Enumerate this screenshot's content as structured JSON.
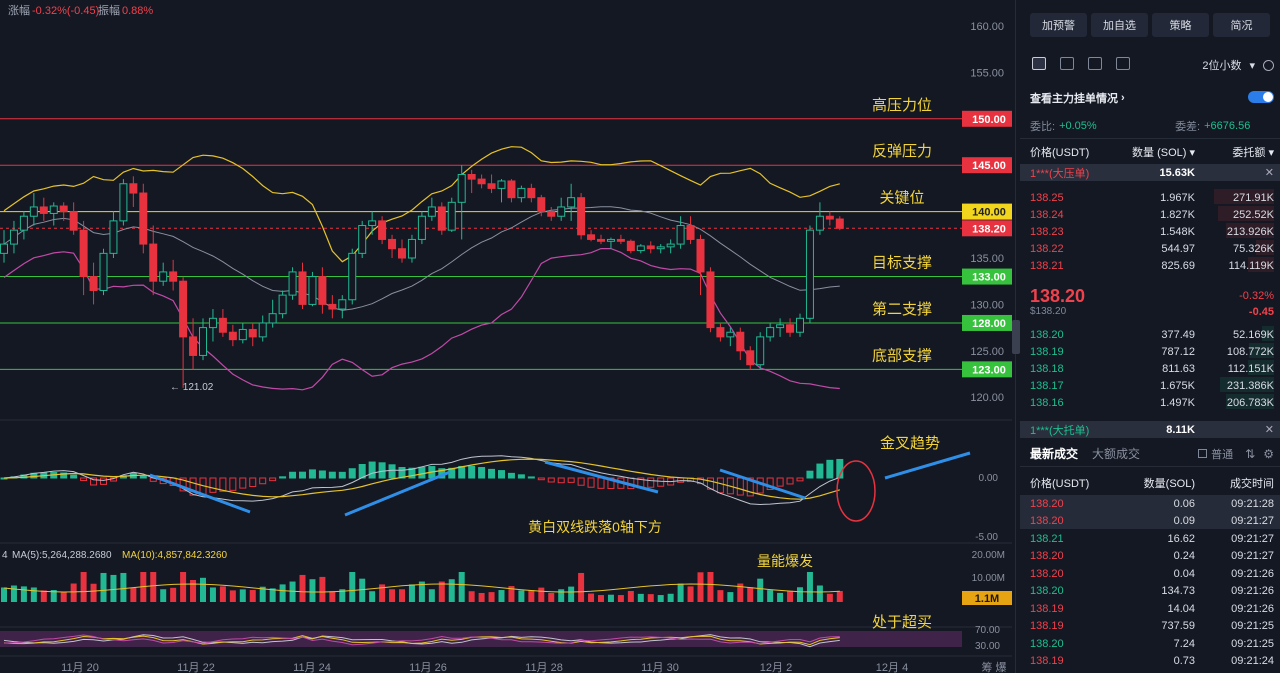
{
  "header": {
    "change_label": "涨幅",
    "change_value": "-0.32%(-0.45)",
    "amplitude_label": "振幅",
    "amplitude_value": "0.88%"
  },
  "price_axis": [
    "160.00",
    "155.00",
    "150.00",
    "145.00",
    "140.00",
    "135.00",
    "130.00",
    "125.00",
    "120.00"
  ],
  "macd_axis": [
    "0.00",
    "-5.00"
  ],
  "volume_axis": [
    "20.00M",
    "10.00M"
  ],
  "rsi_axis": [
    "70.00",
    "30.00"
  ],
  "levels": [
    {
      "label": "高压力位",
      "value": "150.00",
      "color": "#e8323f"
    },
    {
      "label": "反弹压力",
      "value": "145.00",
      "color": "#e8323f"
    },
    {
      "label": "关键位",
      "value": "140.00",
      "color": "#f2d61e"
    },
    {
      "label": "目标支撑",
      "value": "133.00",
      "color": "#37c23d"
    },
    {
      "label": "第二支撑",
      "value": "128.00",
      "color": "#37c23d"
    },
    {
      "label": "底部支撑",
      "value": "123.00",
      "color": "#37c23d"
    }
  ],
  "current_price_tag": "138.20",
  "low_marker": "← 121.02",
  "annotations": {
    "golden_cross": "金叉趋势",
    "macd_note": "黄白双线跌落0轴下方",
    "volume_burst": "量能爆发",
    "oversold": "处于超买"
  },
  "volume_tag": "1.1M",
  "volume_legend": {
    "ma5": "MA(5):5,264,288.2680",
    "ma10": "MA(10):4,857,842.3260"
  },
  "x_axis": [
    "11月 20",
    "11月 22",
    "11月 24",
    "11月 26",
    "11月 28",
    "11月 30",
    "12月 2",
    "12月 4"
  ],
  "corner_label": "筹 爆",
  "chart_data": {
    "type": "candlestick",
    "y_range": [
      118,
      162
    ],
    "candles": [
      [
        135.5,
        138.0,
        134.5,
        136.5
      ],
      [
        136.5,
        139.0,
        135.5,
        138.0
      ],
      [
        138.0,
        140.0,
        137.0,
        139.5
      ],
      [
        139.5,
        142.0,
        138.5,
        140.5
      ],
      [
        140.5,
        141.5,
        139.0,
        139.8
      ],
      [
        139.8,
        141.0,
        138.5,
        140.6
      ],
      [
        140.6,
        141.0,
        139.0,
        140.0
      ],
      [
        140.0,
        141.0,
        137.5,
        138.0
      ],
      [
        138.0,
        139.0,
        131.0,
        133.0
      ],
      [
        133.0,
        134.5,
        130.0,
        131.5
      ],
      [
        131.5,
        136.0,
        131.0,
        135.5
      ],
      [
        135.5,
        140.0,
        135.0,
        139.0
      ],
      [
        139.0,
        143.5,
        138.5,
        143.0
      ],
      [
        143.0,
        143.8,
        140.5,
        142.0
      ],
      [
        142.0,
        143.0,
        135.5,
        136.5
      ],
      [
        136.5,
        138.5,
        131.0,
        132.5
      ],
      [
        132.5,
        134.5,
        132.0,
        133.5
      ],
      [
        133.5,
        134.8,
        131.5,
        132.5
      ],
      [
        132.5,
        133.0,
        121.0,
        126.5
      ],
      [
        126.5,
        128.5,
        123.0,
        124.5
      ],
      [
        124.5,
        128.5,
        124.0,
        127.5
      ],
      [
        127.5,
        129.5,
        126.0,
        128.5
      ],
      [
        128.5,
        129.5,
        126.5,
        127.0
      ],
      [
        127.0,
        127.8,
        125.5,
        126.2
      ],
      [
        126.2,
        128.0,
        125.8,
        127.3
      ],
      [
        127.3,
        128.0,
        125.5,
        126.5
      ],
      [
        126.5,
        128.8,
        126.0,
        128.0
      ],
      [
        128.0,
        130.5,
        127.5,
        129.0
      ],
      [
        129.0,
        131.5,
        128.5,
        131.0
      ],
      [
        131.0,
        134.0,
        130.5,
        133.5
      ],
      [
        133.5,
        134.5,
        129.5,
        130.0
      ],
      [
        130.0,
        133.5,
        129.8,
        133.0
      ],
      [
        133.0,
        134.0,
        129.0,
        130.0
      ],
      [
        130.0,
        131.0,
        128.5,
        129.5
      ],
      [
        129.5,
        131.0,
        128.5,
        130.5
      ],
      [
        130.5,
        136.0,
        130.0,
        135.5
      ],
      [
        135.5,
        139.0,
        135.0,
        138.5
      ],
      [
        138.5,
        140.0,
        137.5,
        139.0
      ],
      [
        139.0,
        139.5,
        136.5,
        137.0
      ],
      [
        137.0,
        137.5,
        135.0,
        136.0
      ],
      [
        136.0,
        137.0,
        134.5,
        135.0
      ],
      [
        135.0,
        137.5,
        134.5,
        137.0
      ],
      [
        137.0,
        140.0,
        136.5,
        139.5
      ],
      [
        139.5,
        141.5,
        139.0,
        140.5
      ],
      [
        140.5,
        141.0,
        137.5,
        138.0
      ],
      [
        138.0,
        141.5,
        137.8,
        141.0
      ],
      [
        141.0,
        145.0,
        137.0,
        144.0
      ],
      [
        144.0,
        144.5,
        142.0,
        143.5
      ],
      [
        143.5,
        144.0,
        142.5,
        143.0
      ],
      [
        143.0,
        144.0,
        142.0,
        142.5
      ],
      [
        142.5,
        143.5,
        141.0,
        143.3
      ],
      [
        143.3,
        143.5,
        141.0,
        141.5
      ],
      [
        141.5,
        142.8,
        141.0,
        142.5
      ],
      [
        142.5,
        143.0,
        141.0,
        141.5
      ],
      [
        141.5,
        141.8,
        139.5,
        140.0
      ],
      [
        140.0,
        140.5,
        139.0,
        139.5
      ],
      [
        139.5,
        141.5,
        139.0,
        140.5
      ],
      [
        140.5,
        143.0,
        139.0,
        141.5
      ],
      [
        141.5,
        142.0,
        137.0,
        137.5
      ],
      [
        137.5,
        138.0,
        136.8,
        137.0
      ],
      [
        137.0,
        137.5,
        136.5,
        136.8
      ],
      [
        136.8,
        137.2,
        136.0,
        137.0
      ],
      [
        137.0,
        137.5,
        136.5,
        136.8
      ],
      [
        136.8,
        137.0,
        135.5,
        135.8
      ],
      [
        135.8,
        136.5,
        135.5,
        136.3
      ],
      [
        136.3,
        136.8,
        135.5,
        136.0
      ],
      [
        136.0,
        136.5,
        135.5,
        136.2
      ],
      [
        136.2,
        137.0,
        135.5,
        136.5
      ],
      [
        136.5,
        139.5,
        136.0,
        138.5
      ],
      [
        138.5,
        139.5,
        136.5,
        137.0
      ],
      [
        137.0,
        137.5,
        131.0,
        133.5
      ],
      [
        133.5,
        134.0,
        127.0,
        127.5
      ],
      [
        127.5,
        128.0,
        126.0,
        126.5
      ],
      [
        126.5,
        127.5,
        125.5,
        127.0
      ],
      [
        127.0,
        127.5,
        124.0,
        125.0
      ],
      [
        125.0,
        125.5,
        123.0,
        123.5
      ],
      [
        123.5,
        127.0,
        123.0,
        126.5
      ],
      [
        126.5,
        128.0,
        126.0,
        127.5
      ],
      [
        127.5,
        128.5,
        126.5,
        127.8
      ],
      [
        127.8,
        128.5,
        126.5,
        127.0
      ],
      [
        127.0,
        129.0,
        126.5,
        128.5
      ],
      [
        128.5,
        138.5,
        128.0,
        138.0
      ],
      [
        138.0,
        141.0,
        137.5,
        139.5
      ],
      [
        139.5,
        140.0,
        138.5,
        139.2
      ],
      [
        139.2,
        139.5,
        138.0,
        138.2
      ]
    ]
  },
  "panel": {
    "buttons": [
      "加预警",
      "加自选",
      "策略",
      "简况"
    ],
    "decimals": "2位小数",
    "watch_label": "查看主力挂单情况",
    "ratio_label": "委比:",
    "ratio_value": "+0.05%",
    "diff_label": "委差:",
    "diff_value": "+6676.56",
    "headers": [
      "价格(USDT)",
      "数量 (SOL)",
      "委托额"
    ],
    "big_sell": {
      "label": "1***(大压单)",
      "qty": "15.63K"
    },
    "asks": [
      [
        "138.25",
        "1.967K",
        "271.91K"
      ],
      [
        "138.24",
        "1.827K",
        "252.52K"
      ],
      [
        "138.23",
        "1.548K",
        "213.926K"
      ],
      [
        "138.22",
        "544.97",
        "75.326K"
      ],
      [
        "138.21",
        "825.69",
        "114.119K"
      ]
    ],
    "mid_price": "138.20",
    "mid_sub": "$138.20",
    "mid_pct": "-0.32%",
    "mid_chg": "-0.45",
    "bids": [
      [
        "138.20",
        "377.49",
        "52.169K"
      ],
      [
        "138.19",
        "787.12",
        "108.772K"
      ],
      [
        "138.18",
        "811.63",
        "112.151K"
      ],
      [
        "138.17",
        "1.675K",
        "231.386K"
      ],
      [
        "138.16",
        "1.497K",
        "206.783K"
      ]
    ],
    "big_buy": {
      "label": "1***(大托单)",
      "qty": "8.11K"
    },
    "trade_tabs": [
      "最新成交",
      "大额成交"
    ],
    "normal_label": "普通",
    "trade_headers": [
      "价格(USDT)",
      "数量(SOL)",
      "成交时间"
    ],
    "trades": [
      [
        "138.20",
        "0.06",
        "09:21:28",
        "r"
      ],
      [
        "138.20",
        "0.09",
        "09:21:27",
        "r"
      ],
      [
        "138.21",
        "16.62",
        "09:21:27",
        "g"
      ],
      [
        "138.20",
        "0.24",
        "09:21:27",
        "r"
      ],
      [
        "138.20",
        "0.04",
        "09:21:26",
        "r"
      ],
      [
        "138.20",
        "134.73",
        "09:21:26",
        "g"
      ],
      [
        "138.19",
        "14.04",
        "09:21:26",
        "r"
      ],
      [
        "138.19",
        "737.59",
        "09:21:25",
        "r"
      ],
      [
        "138.20",
        "7.24",
        "09:21:25",
        "g"
      ],
      [
        "138.19",
        "0.73",
        "09:21:24",
        "r"
      ]
    ]
  }
}
